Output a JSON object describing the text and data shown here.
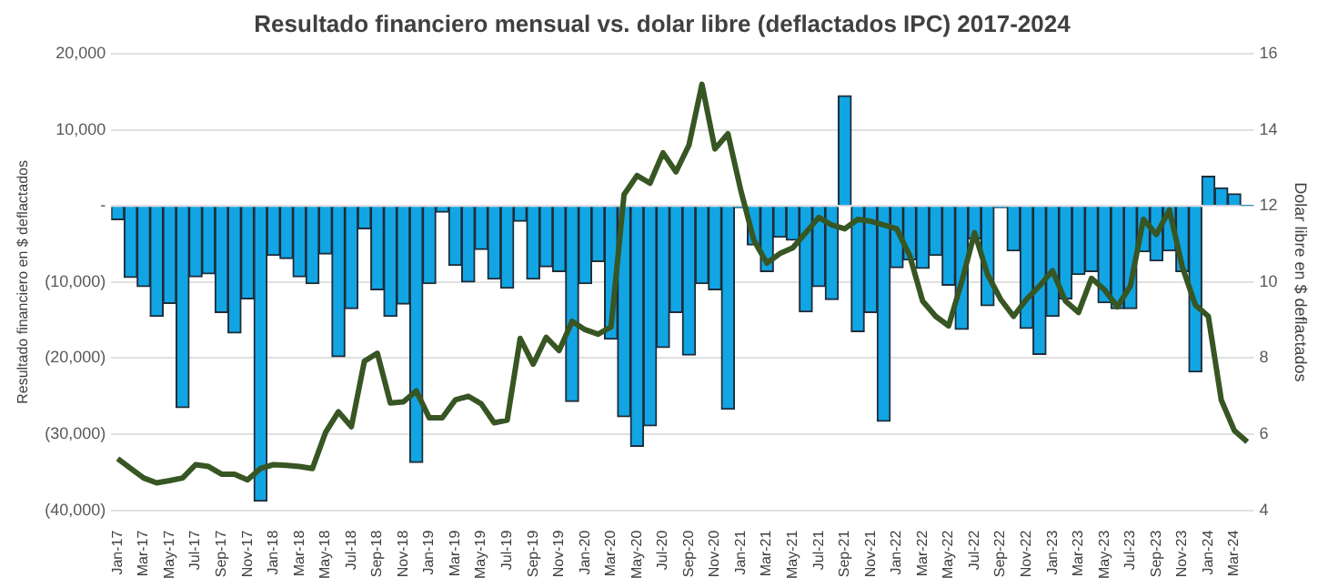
{
  "chart_data": {
    "type": "bar",
    "title": "Resultado financiero mensual vs. dolar libre (deflactados IPC) 2017-2024",
    "ylabel": "Resultado financiero en $ deflactados",
    "y2label": "Dolar libre en $ deflactados",
    "categories": [
      "Jan-17",
      null,
      "Mar-17",
      null,
      "May-17",
      null,
      "Jul-17",
      null,
      "Sep-17",
      null,
      "Nov-17",
      null,
      "Jan-18",
      null,
      "Mar-18",
      null,
      "May-18",
      null,
      "Jul-18",
      null,
      "Sep-18",
      null,
      "Nov-18",
      null,
      "Jan-19",
      null,
      "Mar-19",
      null,
      "May-19",
      null,
      "Jul-19",
      null,
      "Sep-19",
      null,
      "Nov-19",
      null,
      "Jan-20",
      null,
      "Mar-20",
      null,
      "May-20",
      null,
      "Jul-20",
      null,
      "Sep-20",
      null,
      "Nov-20",
      null,
      "Jan-21",
      null,
      "Mar-21",
      null,
      "May-21",
      null,
      "Jul-21",
      null,
      "Sep-21",
      null,
      "Nov-21",
      null,
      "Jan-22",
      null,
      "Mar-22",
      null,
      "May-22",
      null,
      "Jul-22",
      null,
      "Sep-22",
      null,
      "Nov-22",
      null,
      "Jan-23",
      null,
      "Mar-23",
      null,
      "May-23",
      null,
      "Jul-23",
      null,
      "Sep-23",
      null,
      "Nov-23",
      null,
      "Jan-24",
      null,
      "Mar-24",
      null
    ],
    "series": [
      {
        "color": "#12a5e4",
        "values": [
          -1800,
          -9400,
          -10600,
          -14500,
          -12800,
          -26500,
          -9300,
          -8900,
          -14000,
          -16700,
          -12200,
          -38800,
          -6500,
          -6900,
          -9300,
          -10200,
          -6300,
          -19800,
          -13500,
          -3000,
          -11000,
          -14500,
          -12900,
          -33700,
          -10200,
          -800,
          -7800,
          -10000,
          -5700,
          -9600,
          -10800,
          -2000,
          -9600,
          -8000,
          -8600,
          -25700,
          -10200,
          -7300,
          -17500,
          -27700,
          -31600,
          -28900,
          -18600,
          -14000,
          -19600,
          -10200,
          -11000,
          -26700,
          -200,
          -5100,
          -8600,
          -4100,
          -4500,
          -13900,
          -10600,
          -12300,
          14500,
          -16500,
          -14000,
          -28300,
          -8100,
          -7100,
          -8200,
          -6500,
          -10400,
          -16200,
          -4300,
          -13100,
          -200,
          -5900,
          -16100,
          -19500,
          -14500,
          -12200,
          -9000,
          -8600,
          -12700,
          -13500,
          -13500,
          -6000,
          -7200,
          -5900,
          -8600,
          -21800,
          3900,
          2400,
          1600,
          100
        ]
      },
      {
        "type": "line",
        "axis": "y2",
        "color": "#375623",
        "values": [
          5.36,
          5.1,
          4.85,
          4.72,
          4.78,
          4.85,
          5.2,
          5.15,
          4.95,
          4.95,
          4.8,
          5.1,
          5.2,
          5.18,
          5.15,
          5.1,
          6.04,
          6.59,
          6.2,
          7.92,
          8.13,
          6.82,
          6.85,
          7.14,
          6.43,
          6.43,
          6.9,
          7.0,
          6.8,
          6.3,
          6.37,
          8.52,
          7.84,
          8.55,
          8.2,
          8.97,
          8.75,
          8.63,
          8.82,
          12.3,
          12.8,
          12.6,
          13.4,
          12.9,
          13.6,
          15.2,
          13.5,
          13.9,
          12.4,
          11.1,
          10.5,
          10.75,
          10.9,
          11.3,
          11.7,
          11.5,
          11.4,
          11.65,
          11.6,
          11.5,
          11.4,
          10.7,
          9.5,
          9.1,
          8.85,
          10.0,
          11.3,
          10.2,
          9.55,
          9.1,
          9.55,
          9.9,
          10.3,
          9.5,
          9.2,
          10.1,
          9.8,
          9.35,
          9.9,
          11.65,
          11.25,
          11.9,
          10.4,
          9.4,
          9.1,
          6.9,
          6.1,
          5.8
        ]
      }
    ],
    "ylim": [
      -40000,
      20000
    ],
    "yticks": [
      {
        "value": -40000,
        "label": "(40,000)"
      },
      {
        "value": -30000,
        "label": "(30,000)"
      },
      {
        "value": -20000,
        "label": "(20,000)"
      },
      {
        "value": -10000,
        "label": "(10,000)"
      },
      {
        "value": 0,
        "label": "-"
      },
      {
        "value": 10000,
        "label": "10,000"
      },
      {
        "value": 20000,
        "label": "20,000"
      }
    ],
    "y2lim": [
      4,
      16
    ],
    "y2ticks": [
      4,
      6,
      8,
      10,
      12,
      14,
      16
    ],
    "grid": "y",
    "legend": false,
    "marker": "none",
    "line_style": "solid"
  }
}
